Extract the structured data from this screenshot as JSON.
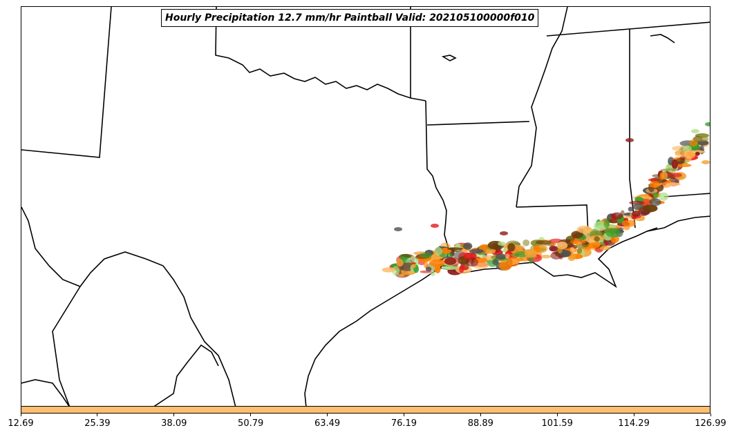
{
  "title": "Hourly Precipitation 12.7 mm/hr Paintball Valid: 202105100000f010",
  "colorbar": {
    "color": "#fdbf6f",
    "tick_labels": [
      "12.69",
      "25.39",
      "38.09",
      "50.79",
      "63.49",
      "76.19",
      "88.89",
      "101.59",
      "114.29",
      "126.99"
    ]
  },
  "paintball_colors": [
    "#e31a1c",
    "#ff7f00",
    "#33a02c",
    "#b2df8a",
    "#6a3d0a",
    "#8c1a1a",
    "#8b8b2e",
    "#505050",
    "#f0a030",
    "#fdbf6f"
  ]
}
